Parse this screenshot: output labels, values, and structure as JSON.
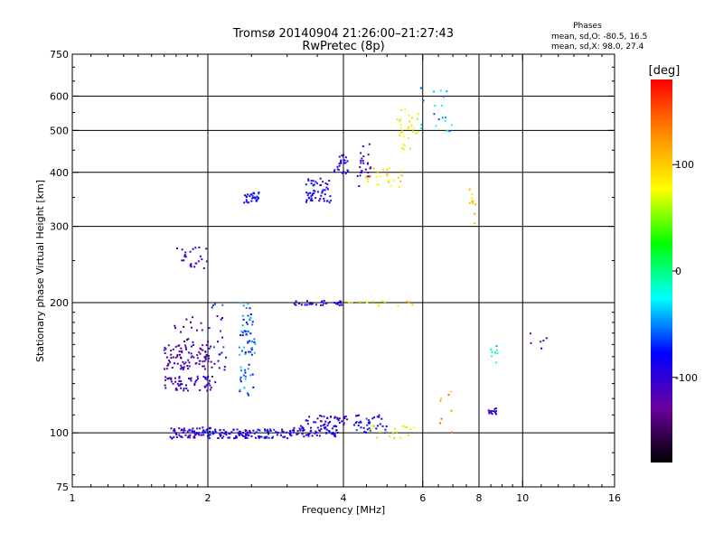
{
  "chart_data": {
    "type": "scatter",
    "title": "Tromsø 20140904 21:26:00–21:27:43",
    "subtitle": "RwPretec (8p)",
    "xlabel": "Frequency [MHz]",
    "ylabel": "Stationary phase Virtual Height [km]",
    "x_scale": "log",
    "y_scale": "log",
    "xlim": [
      1,
      16
    ],
    "ylim": [
      75,
      750
    ],
    "x_ticks": [
      1,
      2,
      4,
      6,
      8,
      10,
      16
    ],
    "x_tick_labels": [
      "1",
      "2",
      "4",
      "6",
      "8",
      "10",
      "16"
    ],
    "x_gridlines": [
      2,
      4,
      6,
      8,
      10
    ],
    "y_ticks": [
      75,
      100,
      200,
      300,
      400,
      500,
      600,
      750
    ],
    "y_tick_labels": [
      "75",
      "100",
      "200",
      "300",
      "400",
      "500",
      "600",
      "750"
    ],
    "y_gridlines": [
      100,
      200,
      300,
      400,
      500,
      600
    ],
    "grid": true,
    "stats": {
      "heading": "Phases",
      "line_o": "mean, sd,O: -80.5, 16.5",
      "line_x": "mean, sd,X:  98.0, 27.4"
    },
    "colorbar": {
      "label": "[deg]",
      "range": [
        -180,
        180
      ],
      "ticks": [
        100,
        0,
        -100
      ],
      "tick_labels": [
        "100",
        "0",
        "-100"
      ],
      "colors": [
        "#ff0000",
        "#ff8c00",
        "#ffff00",
        "#00ff00",
        "#00ffff",
        "#0000ff",
        "#6a00a0",
        "#000000"
      ]
    },
    "point_clusters": [
      {
        "x": [
          1.65,
          2.05
        ],
        "y": [
          97,
          103
        ],
        "phase": -95,
        "n": 70
      },
      {
        "x": [
          2.05,
          3.1
        ],
        "y": [
          97,
          102
        ],
        "phase": -90,
        "n": 110
      },
      {
        "x": [
          3.1,
          3.9
        ],
        "y": [
          98,
          104
        ],
        "phase": -92,
        "n": 60
      },
      {
        "x": [
          3.3,
          4.1
        ],
        "y": [
          104,
          110
        ],
        "phase": -100,
        "n": 40
      },
      {
        "x": [
          4.2,
          5.0
        ],
        "y": [
          100,
          110
        ],
        "phase": -80,
        "n": 40
      },
      {
        "x": [
          4.6,
          5.9
        ],
        "y": [
          97,
          104
        ],
        "phase": 70,
        "n": 18
      },
      {
        "x": [
          1.6,
          2.05
        ],
        "y": [
          125,
          135
        ],
        "phase": -110,
        "n": 60
      },
      {
        "x": [
          1.6,
          2.05
        ],
        "y": [
          140,
          150
        ],
        "phase": -115,
        "n": 50
      },
      {
        "x": [
          1.6,
          2.05
        ],
        "y": [
          150,
          160
        ],
        "phase": -120,
        "n": 40
      },
      {
        "x": [
          1.65,
          1.95
        ],
        "y": [
          160,
          185
        ],
        "phase": -130,
        "n": 15
      },
      {
        "x": [
          1.7,
          2.0
        ],
        "y": [
          240,
          270
        ],
        "phase": -105,
        "n": 25
      },
      {
        "x": [
          2.35,
          2.55
        ],
        "y": [
          120,
          200
        ],
        "phase": -60,
        "n": 70
      },
      {
        "x": [
          2.0,
          2.2
        ],
        "y": [
          130,
          200
        ],
        "phase": -80,
        "n": 25
      },
      {
        "x": [
          2.4,
          2.6
        ],
        "y": [
          340,
          360
        ],
        "phase": -85,
        "n": 30
      },
      {
        "x": [
          3.3,
          3.75
        ],
        "y": [
          340,
          390
        ],
        "phase": -90,
        "n": 55
      },
      {
        "x": [
          3.8,
          4.1
        ],
        "y": [
          395,
          440
        ],
        "phase": -100,
        "n": 25
      },
      {
        "x": [
          3.1,
          4.0
        ],
        "y": [
          197,
          202
        ],
        "phase": -95,
        "n": 30
      },
      {
        "x": [
          4.0,
          5.7
        ],
        "y": [
          196,
          202
        ],
        "phase": 90,
        "n": 15
      },
      {
        "x": [
          4.3,
          4.6
        ],
        "y": [
          370,
          480
        ],
        "phase": -110,
        "n": 25
      },
      {
        "x": [
          4.4,
          5.4
        ],
        "y": [
          370,
          410
        ],
        "phase": 90,
        "n": 25
      },
      {
        "x": [
          5.2,
          5.9
        ],
        "y": [
          450,
          560
        ],
        "phase": 80,
        "n": 30
      },
      {
        "x": [
          5.9,
          7.0
        ],
        "y": [
          480,
          650
        ],
        "phase": -40,
        "n": 20
      },
      {
        "x": [
          7.6,
          7.9
        ],
        "y": [
          300,
          380
        ],
        "phase": 100,
        "n": 10
      },
      {
        "x": [
          8.4,
          8.8
        ],
        "y": [
          110,
          114
        ],
        "phase": -100,
        "n": 14
      },
      {
        "x": [
          8.5,
          8.8
        ],
        "y": [
          140,
          160
        ],
        "phase": -20,
        "n": 8
      },
      {
        "x": [
          6.5,
          7.0
        ],
        "y": [
          100,
          130
        ],
        "phase": 120,
        "n": 8
      },
      {
        "x": [
          10.1,
          11.8
        ],
        "y": [
          150,
          170
        ],
        "phase": -110,
        "n": 6
      }
    ]
  }
}
